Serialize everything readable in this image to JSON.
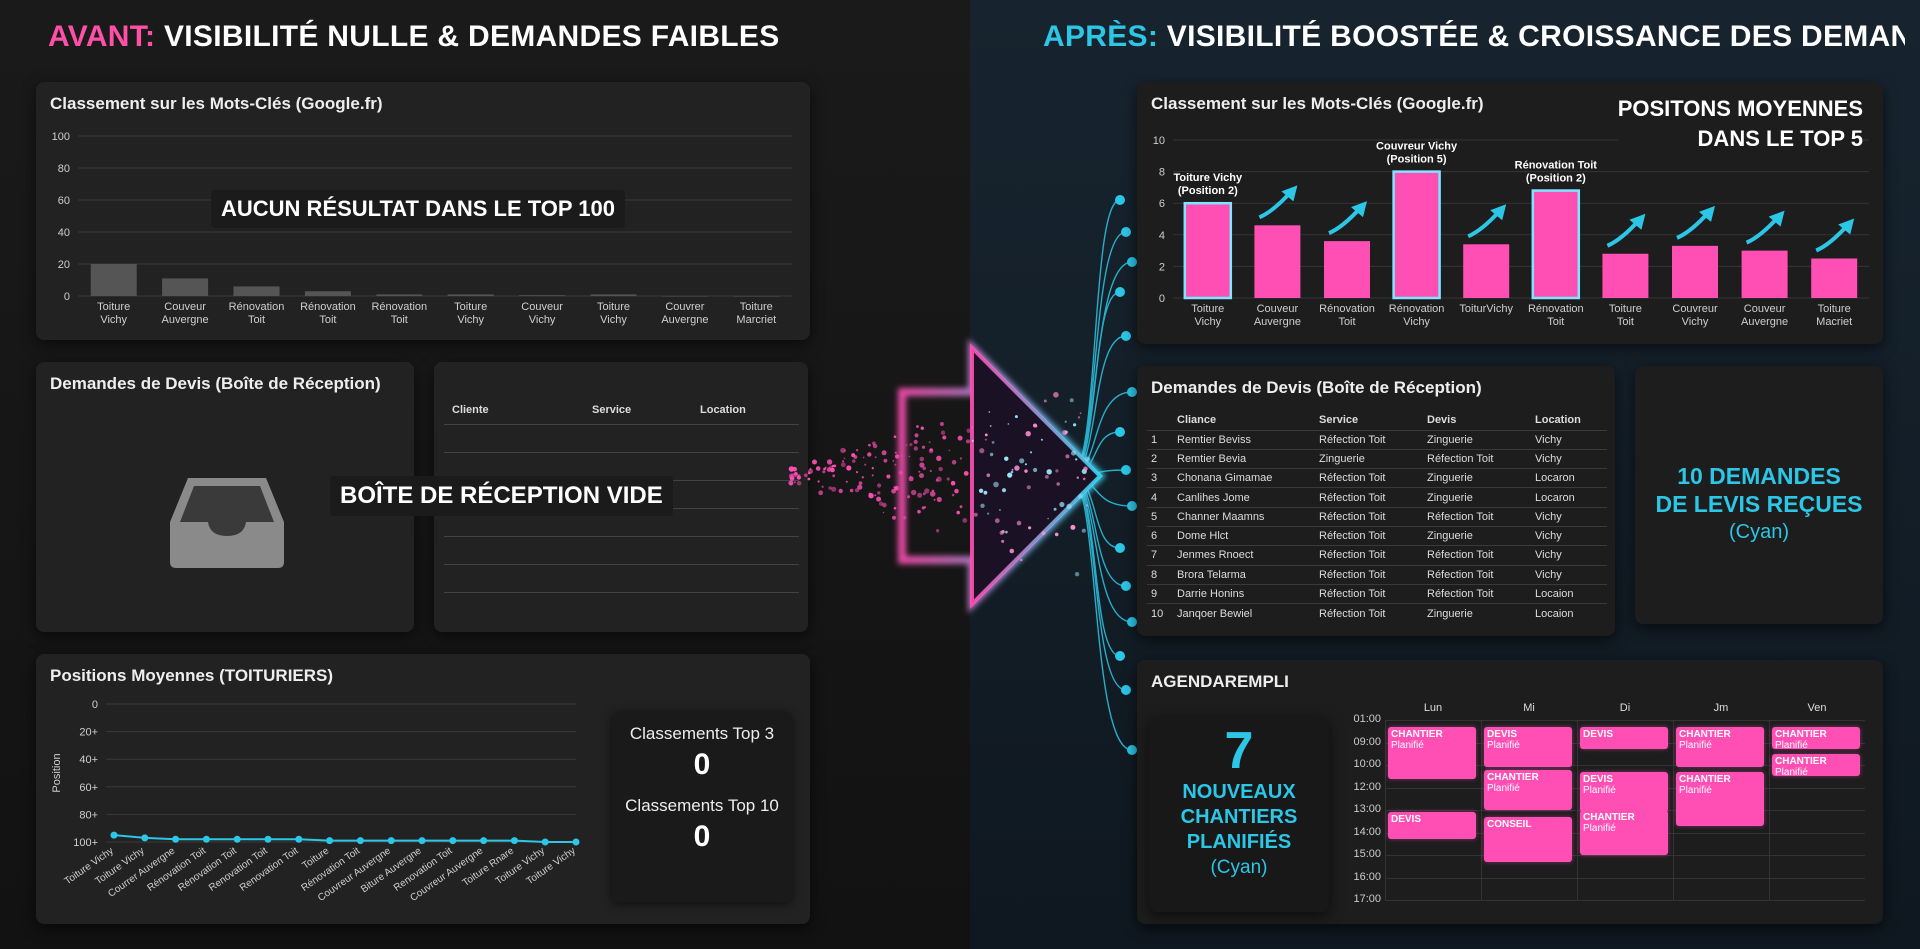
{
  "left": {
    "header": {
      "prefix": "AVANT:",
      "rest": "VISIBILITÉ NULLE & DEMANDES FAIBLES"
    },
    "keyword_chart": {
      "title": "Classement sur les Mots-Clés (Google.fr)",
      "overlay": "AUCUN RÉSULTAT DANS LE TOP 100",
      "y_ticks": [
        "100",
        "80",
        "60",
        "40",
        "20",
        "0"
      ]
    },
    "inbox": {
      "title": "Demandes de Devis (Boîte de Réception)",
      "overlay": "BOÎTE DE RÉCEPTION VIDE",
      "columns": [
        "Cliente",
        "Service",
        "Location"
      ],
      "icon": "inbox-tray-icon"
    },
    "positions": {
      "title": "Positions Moyennes (TOITURIERS)",
      "y_axis_label": "Position",
      "y_ticks": [
        "0",
        "20+",
        "40+",
        "60+",
        "80+",
        "100+"
      ],
      "top3_label": "Classements Top 3",
      "top3_value": "0",
      "top10_label": "Classements Top 10",
      "top10_value": "0"
    }
  },
  "right": {
    "header": {
      "prefix": "APRÈS:",
      "rest": "VISIBILITÉ BOOSTÉE & CROISSANCE DES DEMANDES"
    },
    "keyword_chart": {
      "title": "Classement sur les Mots-Clés (Google.fr)",
      "headline_line1": "POSITONS MOYENNES",
      "headline_line2": "DANS LE TOP 5",
      "y_ticks": [
        "10",
        "8",
        "6",
        "4",
        "2",
        "0"
      ],
      "annotations": [
        {
          "bar": 0,
          "line1": "Toiture Vichy",
          "line2": "(Position 2)"
        },
        {
          "bar": 3,
          "line1": "Couvreur Vichy",
          "line2": "(Position 5)"
        },
        {
          "bar": 5,
          "line1": "Rénovation Toit",
          "line2": "(Position 2)"
        }
      ]
    },
    "quotes": {
      "title": "Demandes de Devis (Boîte de Réception)",
      "columns": [
        "Cliance",
        "Service",
        "Devis",
        "Location"
      ],
      "rows": [
        {
          "n": "1",
          "client": "Remtier Beviss",
          "service": "Réfection Toit",
          "devis": "Zinguerie",
          "location": "Vichy"
        },
        {
          "n": "2",
          "client": "Remtier Bevia",
          "service": "Zinguerie",
          "devis": "Réfection Toit",
          "location": "Vichy"
        },
        {
          "n": "3",
          "client": "Chonana Gimamae",
          "service": "Réfection Toit",
          "devis": "Zinguerie",
          "location": "Locaron"
        },
        {
          "n": "4",
          "client": "Canlihes Jome",
          "service": "Réfection Toit",
          "devis": "Zinguerie",
          "location": "Locaron"
        },
        {
          "n": "5",
          "client": "Channer Maamns",
          "service": "Réfection Toit",
          "devis": "Réfection Toit",
          "location": "Vichy"
        },
        {
          "n": "6",
          "client": "Dome Hlct",
          "service": "Réfection Toit",
          "devis": "Zinguerie",
          "location": "Vichy"
        },
        {
          "n": "7",
          "client": "Jenmes Rnoect",
          "service": "Réfection Toit",
          "devis": "Réfection Toit",
          "location": "Vichy"
        },
        {
          "n": "8",
          "client": "Brora Telarma",
          "service": "Réfection Toit",
          "devis": "Réfection Toit",
          "location": "Vichy"
        },
        {
          "n": "9",
          "client": "Darrie Honins",
          "service": "Réfection Toit",
          "devis": "Réfection Toit",
          "location": "Locaion"
        },
        {
          "n": "10",
          "client": "Janqoer Bewiel",
          "service": "Réfection Toit",
          "devis": "Zinguerie",
          "location": "Locaion"
        }
      ],
      "summary_line1": "10 DEMANDES",
      "summary_line2": "DE LEVIS REÇUES",
      "summary_note": "(Cyan)"
    },
    "agenda": {
      "title": "AGENDAREMPLI",
      "count": "7",
      "line1": "NOUVEAUX",
      "line2": "CHANTIERS",
      "line3": "PLANIFIÉS",
      "note": "(Cyan)",
      "days": [
        "Lun",
        "Mi",
        "Di",
        "Jm",
        "Ven"
      ],
      "hours": [
        "01:00",
        "09:00",
        "10:00",
        "12:00",
        "13:00",
        "14:00",
        "15:00",
        "16:00",
        "17:00"
      ],
      "events": [
        {
          "title": "CHANTIER",
          "sub": "Planifié"
        },
        {
          "title": "DEVIS",
          "sub": "Planifié"
        },
        {
          "title": "CHANTIER",
          "sub": "Planifié"
        },
        {
          "title": "DEVIS",
          "sub": ""
        },
        {
          "title": "DEVIS",
          "sub": "Planifié"
        },
        {
          "title": "CHANTIER",
          "sub": "Planifié"
        },
        {
          "title": "CHANTIER",
          "sub": "Planifié"
        },
        {
          "title": "CHANTIER",
          "sub": "Planifié"
        },
        {
          "title": "CHANTIER",
          "sub": "Planifié"
        },
        {
          "title": "DEVIS",
          "sub": ""
        },
        {
          "title": "CONSEIL",
          "sub": ""
        },
        {
          "title": "CHANTIER",
          "sub": "Planifié"
        }
      ]
    }
  },
  "chart_data": [
    {
      "type": "bar",
      "title": "Classement sur les Mots-Clés (Google.fr)",
      "categories": [
        "Toiture Vichy",
        "Couveur Auvergne",
        "Rénovation Toit",
        "Rénovation Toit",
        "Rénovation Toit",
        "Toiture Vichy",
        "Couveur Vichy",
        "Toiture Vichy",
        "Couvrer Auvergne",
        "Toiture Marcriet"
      ],
      "values": [
        20,
        11,
        6,
        3,
        1,
        1,
        0.5,
        1,
        0,
        0
      ],
      "ylim": [
        0,
        100
      ],
      "grid": true
    },
    {
      "type": "bar",
      "title": "Classement sur les Mots-Clés (Google.fr)",
      "categories": [
        "Toiture Vichy",
        "Couveur Auvergne",
        "Rénovation Toit",
        "Rénovation Vichy",
        "ToiturVichy",
        "Rénovation Toit",
        "Toiture Toit",
        "Couvreur Vichy",
        "Couveur Auvergne",
        "Toiture Macriet"
      ],
      "values": [
        6,
        4.6,
        3.6,
        8,
        3.4,
        6.8,
        2.8,
        3.3,
        3,
        2.5
      ],
      "ylim": [
        0,
        10
      ],
      "grid": true
    },
    {
      "type": "line",
      "title": "Positions Moyennes (TOITURIERS)",
      "ylabel": "Position",
      "categories": [
        "Toiture Vichy",
        "Toiture Vichy",
        "Courrer Auvergne",
        "Rénovation Toit",
        "Rénovation Toit",
        "Renovation Toit",
        "Renovation Toit",
        "Toiture",
        "Rénovation Toit",
        "Couvreur Auvergne",
        "Biture Auvergne",
        "Renovation Toit",
        "Couvreur Auvergne",
        "Toiture Rnare",
        "Toiture Vichy",
        "Toiture Vichy"
      ],
      "values": [
        95,
        97,
        98,
        98,
        98,
        98,
        98,
        99,
        99,
        99,
        99,
        99,
        99,
        99,
        100,
        100
      ],
      "ylim": [
        0,
        100
      ],
      "inverted": true
    }
  ]
}
